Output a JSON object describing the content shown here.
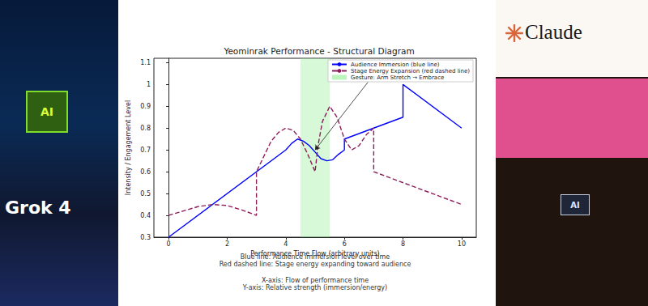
{
  "chart_data": {
    "type": "line",
    "title": "Yeominrak Performance - Structural Diagram",
    "x_label": "Performance Time Flow (arbitrary units)",
    "y_label": "Intensity / Engagement Level",
    "xlim": [
      -0.5,
      10.5
    ],
    "xticks": [
      0,
      2,
      4,
      6,
      8,
      10
    ],
    "ylim": [
      0.3,
      1.12
    ],
    "yticks": [
      0.3,
      0.4,
      0.5,
      0.6,
      0.7,
      0.8,
      0.9,
      1.0,
      1.1
    ],
    "grid": false,
    "legend": "upper right",
    "series": [
      {
        "name": "Audience Immersion (blue line)",
        "color": "#0000ff",
        "line_style": "solid",
        "x": [
          0,
          4,
          4.2,
          4.4,
          4.6,
          4.8,
          5.0,
          5.2,
          5.4,
          5.6,
          5.8,
          6,
          6,
          7,
          8,
          8,
          10
        ],
        "values": [
          0.3,
          0.7,
          0.73,
          0.75,
          0.74,
          0.72,
          0.69,
          0.66,
          0.65,
          0.655,
          0.68,
          0.7,
          0.75,
          0.8,
          0.85,
          1.0,
          0.8
        ]
      },
      {
        "name": "Stage Energy Expansion (red dashed line)",
        "color": "#8b1e5a",
        "line_style": "dashed",
        "x": [
          0,
          0.5,
          1,
          1.5,
          2,
          2.5,
          3,
          3,
          3.25,
          3.5,
          3.75,
          4,
          4.25,
          4.5,
          4.75,
          5,
          5.1,
          5.25,
          5.5,
          5.75,
          6,
          6.25,
          6.5,
          6.75,
          7,
          7,
          10
        ],
        "values": [
          0.4,
          0.42,
          0.44,
          0.45,
          0.445,
          0.425,
          0.4,
          0.6,
          0.67,
          0.74,
          0.78,
          0.8,
          0.79,
          0.75,
          0.68,
          0.6,
          0.72,
          0.83,
          0.9,
          0.85,
          0.75,
          0.7,
          0.72,
          0.77,
          0.8,
          0.6,
          0.45
        ]
      }
    ],
    "shaded_region": {
      "name": "Gesture: Arm Stretch → Embrace",
      "color": "#90ee90",
      "x_range": [
        4.5,
        5.5
      ]
    },
    "arrow": {
      "from": [
        6.8,
        1.01
      ],
      "to": [
        5,
        0.7
      ]
    },
    "notes": [
      "Blue line: Audience immersion level over time",
      "Red dashed line: Stage energy expanding toward audience",
      "X-axis: Flow of performance time",
      "Y-axis: Relative strength (immersion/energy)"
    ]
  },
  "screen": {
    "left_panel": [
      "AI",
      "Grok 4"
    ],
    "right_panel": [
      "Claude",
      "AI"
    ]
  }
}
